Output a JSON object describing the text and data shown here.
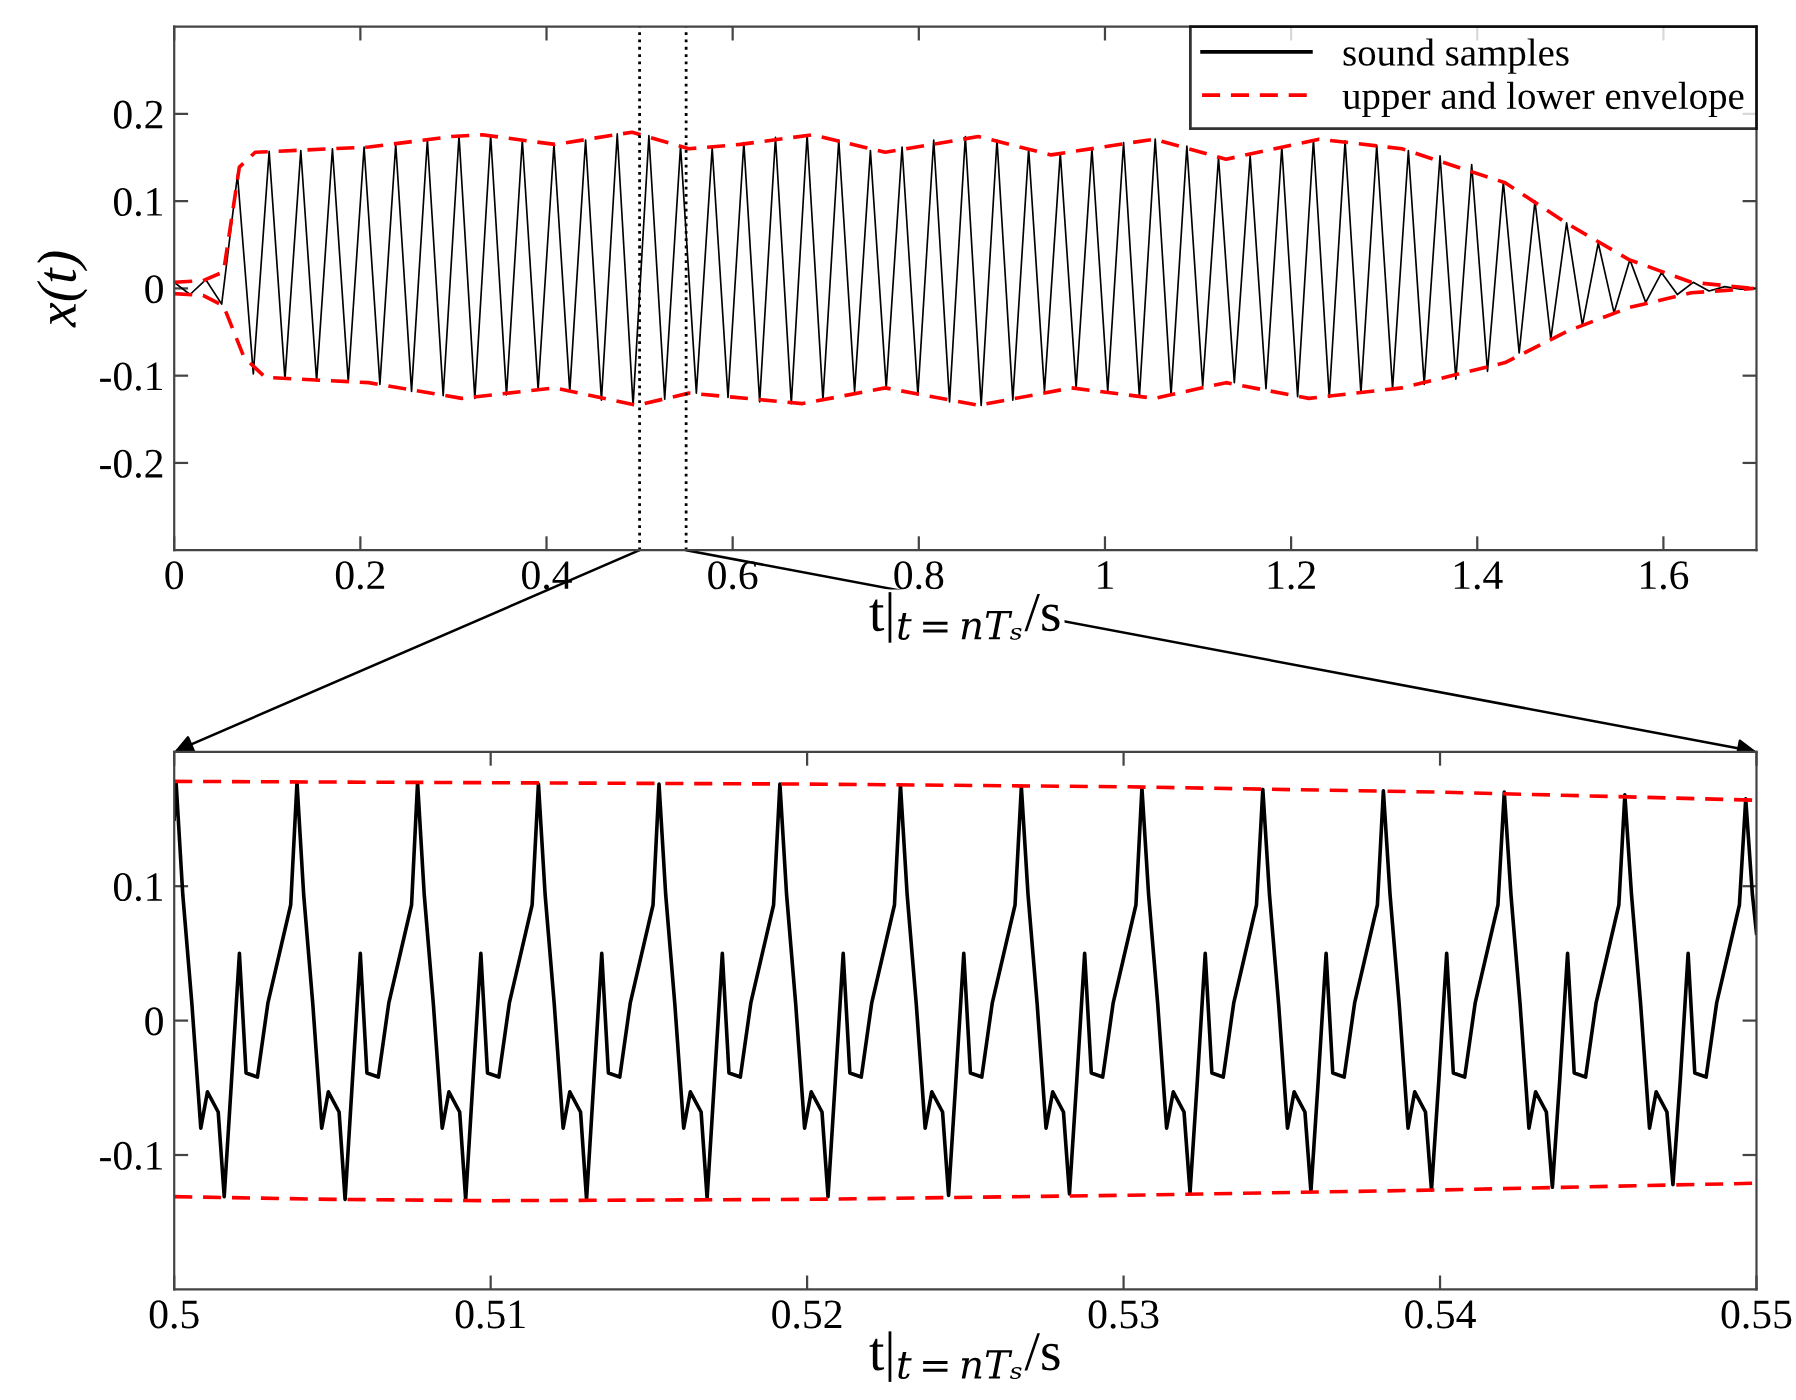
{
  "chart_data": [
    {
      "type": "line",
      "xlim": [
        0,
        1.7
      ],
      "ylim": [
        -0.3,
        0.3
      ],
      "xticks": [
        0,
        0.2,
        0.4,
        0.6,
        0.8,
        1,
        1.2,
        1.4,
        1.6
      ],
      "yticks": [
        -0.2,
        -0.1,
        0,
        0.1,
        0.2
      ],
      "xlabel": "t|$_{t=nTₛ}$/s",
      "ylabel": "x(t)",
      "legend": "top right",
      "grid": false,
      "ref_lines": [
        {
          "axis": "x",
          "value": 0.5,
          "color": "#000000",
          "line_style": "dotted"
        },
        {
          "axis": "x",
          "value": 0.55,
          "color": "#000000",
          "line_style": "dotted"
        }
      ],
      "series": [
        {
          "name": "sound samples",
          "color": "#000000",
          "line_style": "solid",
          "x": [
            0,
            0.017,
            0.034,
            0.051,
            0.068,
            0.085,
            0.102,
            0.119,
            0.136,
            0.153,
            0.17,
            0.187,
            0.204,
            0.221,
            0.238,
            0.255,
            0.272,
            0.289,
            0.306,
            0.323,
            0.34,
            0.357,
            0.374,
            0.391,
            0.408,
            0.425,
            0.442,
            0.459,
            0.476,
            0.493,
            0.51,
            0.527,
            0.544,
            0.561,
            0.578,
            0.595,
            0.612,
            0.629,
            0.646,
            0.663,
            0.68,
            0.697,
            0.714,
            0.731,
            0.748,
            0.765,
            0.782,
            0.799,
            0.816,
            0.833,
            0.85,
            0.867,
            0.884,
            0.901,
            0.918,
            0.935,
            0.952,
            0.969,
            0.986,
            1.003,
            1.02,
            1.037,
            1.054,
            1.071,
            1.088,
            1.105,
            1.122,
            1.139,
            1.156,
            1.173,
            1.19,
            1.207,
            1.224,
            1.241,
            1.258,
            1.275,
            1.292,
            1.309,
            1.326,
            1.343,
            1.36,
            1.377,
            1.394,
            1.411,
            1.428,
            1.445,
            1.462,
            1.479,
            1.496,
            1.513,
            1.53,
            1.547,
            1.564,
            1.581,
            1.598,
            1.615,
            1.632,
            1.649,
            1.666,
            1.683,
            1.7
          ],
          "values": [
            0.007,
            -0.007,
            0.01,
            -0.018,
            0.13,
            -0.098,
            0.157,
            -0.104,
            0.158,
            -0.106,
            0.16,
            -0.107,
            0.162,
            -0.11,
            0.165,
            -0.118,
            0.17,
            -0.123,
            0.175,
            -0.126,
            0.175,
            -0.122,
            0.17,
            -0.116,
            0.165,
            -0.118,
            0.17,
            -0.128,
            0.177,
            -0.134,
            0.175,
            -0.127,
            0.163,
            -0.12,
            0.161,
            -0.125,
            0.167,
            -0.13,
            0.173,
            -0.132,
            0.176,
            -0.128,
            0.17,
            -0.118,
            0.158,
            -0.114,
            0.162,
            -0.122,
            0.17,
            -0.13,
            0.174,
            -0.134,
            0.17,
            -0.128,
            0.16,
            -0.118,
            0.155,
            -0.114,
            0.16,
            -0.118,
            0.167,
            -0.124,
            0.171,
            -0.122,
            0.163,
            -0.112,
            0.15,
            -0.108,
            0.152,
            -0.115,
            0.162,
            -0.124,
            0.17,
            -0.125,
            0.169,
            -0.12,
            0.164,
            -0.115,
            0.158,
            -0.11,
            0.152,
            -0.104,
            0.142,
            -0.095,
            0.122,
            -0.074,
            0.1,
            -0.058,
            0.075,
            -0.042,
            0.052,
            -0.028,
            0.033,
            -0.016,
            0.018,
            -0.007,
            0.007,
            -0.003,
            0.002,
            -0.001,
            0
          ]
        },
        {
          "name": "upper and lower envelope",
          "color": "#ff0000",
          "line_style": "dashed",
          "x": [
            0,
            0.031,
            0.053,
            0.07,
            0.087,
            0.209,
            0.298,
            0.331,
            0.409,
            0.492,
            0.553,
            0.608,
            0.686,
            0.764,
            0.864,
            0.942,
            1.053,
            1.13,
            1.23,
            1.319,
            1.43,
            1.497,
            1.563,
            1.63,
            1.697
          ],
          "values": [
            0.007,
            0.009,
            0.019,
            0.139,
            0.156,
            0.162,
            0.174,
            0.176,
            0.165,
            0.179,
            0.16,
            0.165,
            0.176,
            0.156,
            0.174,
            0.153,
            0.171,
            0.148,
            0.171,
            0.16,
            0.121,
            0.074,
            0.033,
            0.007,
            0
          ]
        },
        {
          "color": "#ff0000",
          "line_style": "dashed",
          "x": [
            0,
            0.031,
            0.053,
            0.075,
            0.098,
            0.209,
            0.309,
            0.409,
            0.497,
            0.553,
            0.675,
            0.764,
            0.864,
            0.964,
            1.053,
            1.13,
            1.219,
            1.319,
            1.43,
            1.497,
            1.563,
            1.63,
            1.697
          ],
          "values": [
            -0.006,
            -0.008,
            -0.02,
            -0.079,
            -0.102,
            -0.108,
            -0.126,
            -0.114,
            -0.134,
            -0.12,
            -0.132,
            -0.114,
            -0.134,
            -0.114,
            -0.126,
            -0.108,
            -0.126,
            -0.114,
            -0.085,
            -0.049,
            -0.022,
            -0.005,
            0
          ]
        }
      ]
    },
    {
      "type": "line",
      "xlim": [
        0.5,
        0.55
      ],
      "ylim": [
        -0.2,
        0.2
      ],
      "xticks": [
        0.5,
        0.51,
        0.52,
        0.53,
        0.54,
        0.55
      ],
      "yticks": [
        -0.1,
        0,
        0.1
      ],
      "xlabel": "t|$_{t=nTₛ}$/s",
      "grid": false,
      "series": [
        {
          "color": "#000000",
          "line_style": "solid",
          "x": [
            0.5,
            0.50006,
            0.50027,
            0.50056,
            0.50084,
            0.50105,
            0.50139,
            0.50158,
            0.50181,
            0.50206,
            0.50227,
            0.50263,
            0.50296,
            0.50368,
            0.50388,
            0.50409,
            0.50438,
            0.50466,
            0.50487,
            0.50521,
            0.5054,
            0.50563,
            0.50588,
            0.50609,
            0.50645,
            0.50678,
            0.5075,
            0.50769,
            0.5079,
            0.50819,
            0.50847,
            0.50868,
            0.50902,
            0.50921,
            0.50944,
            0.50969,
            0.5099,
            0.51026,
            0.51059,
            0.51131,
            0.51151,
            0.51172,
            0.51201,
            0.51229,
            0.5125,
            0.51284,
            0.51303,
            0.51326,
            0.51351,
            0.51372,
            0.51408,
            0.51441,
            0.51513,
            0.51532,
            0.51553,
            0.51582,
            0.5161,
            0.51631,
            0.51665,
            0.51684,
            0.51707,
            0.51732,
            0.51753,
            0.51789,
            0.51822,
            0.51894,
            0.51914,
            0.51935,
            0.51964,
            0.51992,
            0.52013,
            0.52047,
            0.52066,
            0.52089,
            0.52114,
            0.52135,
            0.52171,
            0.52204,
            0.52276,
            0.52295,
            0.52316,
            0.52345,
            0.52373,
            0.52394,
            0.52428,
            0.52447,
            0.5247,
            0.52495,
            0.52516,
            0.52552,
            0.52585,
            0.52657,
            0.52677,
            0.52698,
            0.52727,
            0.52755,
            0.52776,
            0.5281,
            0.52829,
            0.52852,
            0.52877,
            0.52898,
            0.52934,
            0.52967,
            0.53039,
            0.53058,
            0.53079,
            0.53108,
            0.53136,
            0.53157,
            0.53191,
            0.5321,
            0.53233,
            0.53258,
            0.53279,
            0.53315,
            0.53348,
            0.5342,
            0.5344,
            0.53461,
            0.5349,
            0.53518,
            0.53539,
            0.53573,
            0.53592,
            0.53615,
            0.5364,
            0.53661,
            0.53697,
            0.5373,
            0.53802,
            0.53821,
            0.53842,
            0.53871,
            0.53899,
            0.5392,
            0.53954,
            0.53973,
            0.53996,
            0.54021,
            0.54042,
            0.54078,
            0.54111,
            0.54183,
            0.54203,
            0.54224,
            0.54253,
            0.54281,
            0.54302,
            0.54336,
            0.54355,
            0.54378,
            0.54403,
            0.54424,
            0.5446,
            0.54493,
            0.54565,
            0.54584,
            0.54605,
            0.54634,
            0.54662,
            0.54683,
            0.54717,
            0.54736,
            0.54759,
            0.54784,
            0.54805,
            0.54841,
            0.54874,
            0.54946,
            0.54966,
            0.54987,
            0.55
          ],
          "values": [
            0.15,
            0.177,
            0.094,
            0.012,
            -0.08,
            -0.053,
            -0.068,
            -0.131,
            -0.045,
            0.05,
            -0.039,
            -0.042,
            0.013,
            0.086,
            0.177,
            0.094,
            0.012,
            -0.08,
            -0.053,
            -0.068,
            -0.133,
            -0.045,
            0.05,
            -0.039,
            -0.042,
            0.013,
            0.086,
            0.177,
            0.094,
            0.012,
            -0.08,
            -0.053,
            -0.068,
            -0.133,
            -0.045,
            0.05,
            -0.039,
            -0.042,
            0.013,
            0.086,
            0.176,
            0.094,
            0.012,
            -0.08,
            -0.053,
            -0.068,
            -0.133,
            -0.045,
            0.05,
            -0.039,
            -0.042,
            0.013,
            0.086,
            0.176,
            0.094,
            0.012,
            -0.08,
            -0.053,
            -0.068,
            -0.132,
            -0.045,
            0.05,
            -0.039,
            -0.042,
            0.013,
            0.086,
            0.176,
            0.094,
            0.012,
            -0.08,
            -0.053,
            -0.068,
            -0.131,
            -0.045,
            0.05,
            -0.039,
            -0.042,
            0.013,
            0.086,
            0.175,
            0.094,
            0.012,
            -0.08,
            -0.053,
            -0.068,
            -0.13,
            -0.045,
            0.05,
            -0.039,
            -0.042,
            0.013,
            0.086,
            0.174,
            0.094,
            0.012,
            -0.08,
            -0.053,
            -0.068,
            -0.129,
            -0.045,
            0.05,
            -0.039,
            -0.042,
            0.013,
            0.086,
            0.173,
            0.094,
            0.012,
            -0.08,
            -0.053,
            -0.068,
            -0.128,
            -0.045,
            0.05,
            -0.039,
            -0.042,
            0.013,
            0.086,
            0.172,
            0.094,
            0.012,
            -0.08,
            -0.053,
            -0.068,
            -0.127,
            -0.045,
            0.05,
            -0.039,
            -0.042,
            0.013,
            0.086,
            0.171,
            0.094,
            0.012,
            -0.08,
            -0.053,
            -0.068,
            -0.126,
            -0.045,
            0.05,
            -0.039,
            -0.042,
            0.013,
            0.086,
            0.17,
            0.094,
            0.012,
            -0.08,
            -0.053,
            -0.068,
            -0.124,
            -0.045,
            0.05,
            -0.039,
            -0.042,
            0.013,
            0.086,
            0.168,
            0.094,
            0.012,
            -0.08,
            -0.053,
            -0.068,
            -0.122,
            -0.045,
            0.05,
            -0.039,
            -0.042,
            0.013,
            0.086,
            0.165,
            0.094,
            0.065
          ]
        },
        {
          "color": "#ff0000",
          "line_style": "dashed",
          "x": [
            0.5,
            0.51,
            0.52,
            0.53,
            0.54,
            0.55
          ],
          "values": [
            0.178,
            0.177,
            0.176,
            0.174,
            0.17,
            0.164
          ]
        },
        {
          "color": "#ff0000",
          "line_style": "dashed",
          "x": [
            0.5,
            0.505,
            0.51,
            0.52,
            0.53,
            0.54,
            0.55
          ],
          "values": [
            -0.131,
            -0.133,
            -0.134,
            -0.133,
            -0.13,
            -0.126,
            -0.121
          ]
        }
      ]
    }
  ]
}
